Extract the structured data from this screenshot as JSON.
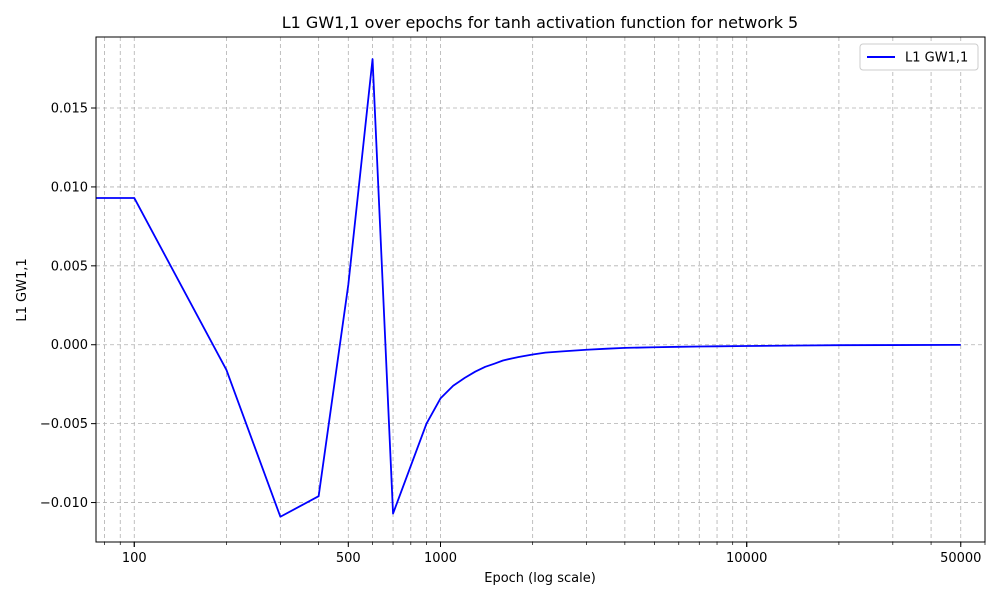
{
  "chart_data": {
    "type": "line",
    "title": "L1 GW1,1 over epochs for tanh activation function for network 5",
    "xlabel": "Epoch (log scale)",
    "ylabel": "L1 GW1,1",
    "xscale": "log",
    "xlim": [
      75,
      60000
    ],
    "ylim": [
      -0.0125,
      0.0195
    ],
    "xticks": [
      100,
      500,
      1000,
      10000,
      50000
    ],
    "xtick_labels": [
      "100",
      "500",
      "1000",
      "10000",
      "50000"
    ],
    "yticks": [
      -0.01,
      -0.005,
      0.0,
      0.005,
      0.01,
      0.015
    ],
    "ytick_labels": [
      "−0.010",
      "−0.005",
      "0.000",
      "0.005",
      "0.010",
      "0.015"
    ],
    "grid": true,
    "legend_position": "top-right",
    "series": [
      {
        "name": "L1 GW1,1",
        "color": "#0000ff",
        "x": [
          75,
          100,
          200,
          300,
          400,
          500,
          600,
          700,
          900,
          1000,
          1100,
          1200,
          1300,
          1400,
          1500,
          1600,
          1700,
          1800,
          2000,
          2200,
          2500,
          3000,
          3500,
          4000,
          5000,
          6000,
          7000,
          8000,
          10000,
          15000,
          20000,
          30000,
          50000
        ],
        "y": [
          0.0093,
          0.0093,
          -0.0016,
          -0.0109,
          -0.0096,
          0.0038,
          0.0181,
          -0.0107,
          -0.005,
          -0.0034,
          -0.0026,
          -0.0021,
          -0.0017,
          -0.0014,
          -0.0012,
          -0.001,
          -0.00088,
          -0.00078,
          -0.00062,
          -0.0005,
          -0.00042,
          -0.00032,
          -0.00025,
          -0.0002,
          -0.00016,
          -0.00013,
          -0.00011,
          -0.0001,
          -8e-05,
          -5e-05,
          -3e-05,
          -2e-05,
          -1e-05
        ]
      }
    ]
  }
}
